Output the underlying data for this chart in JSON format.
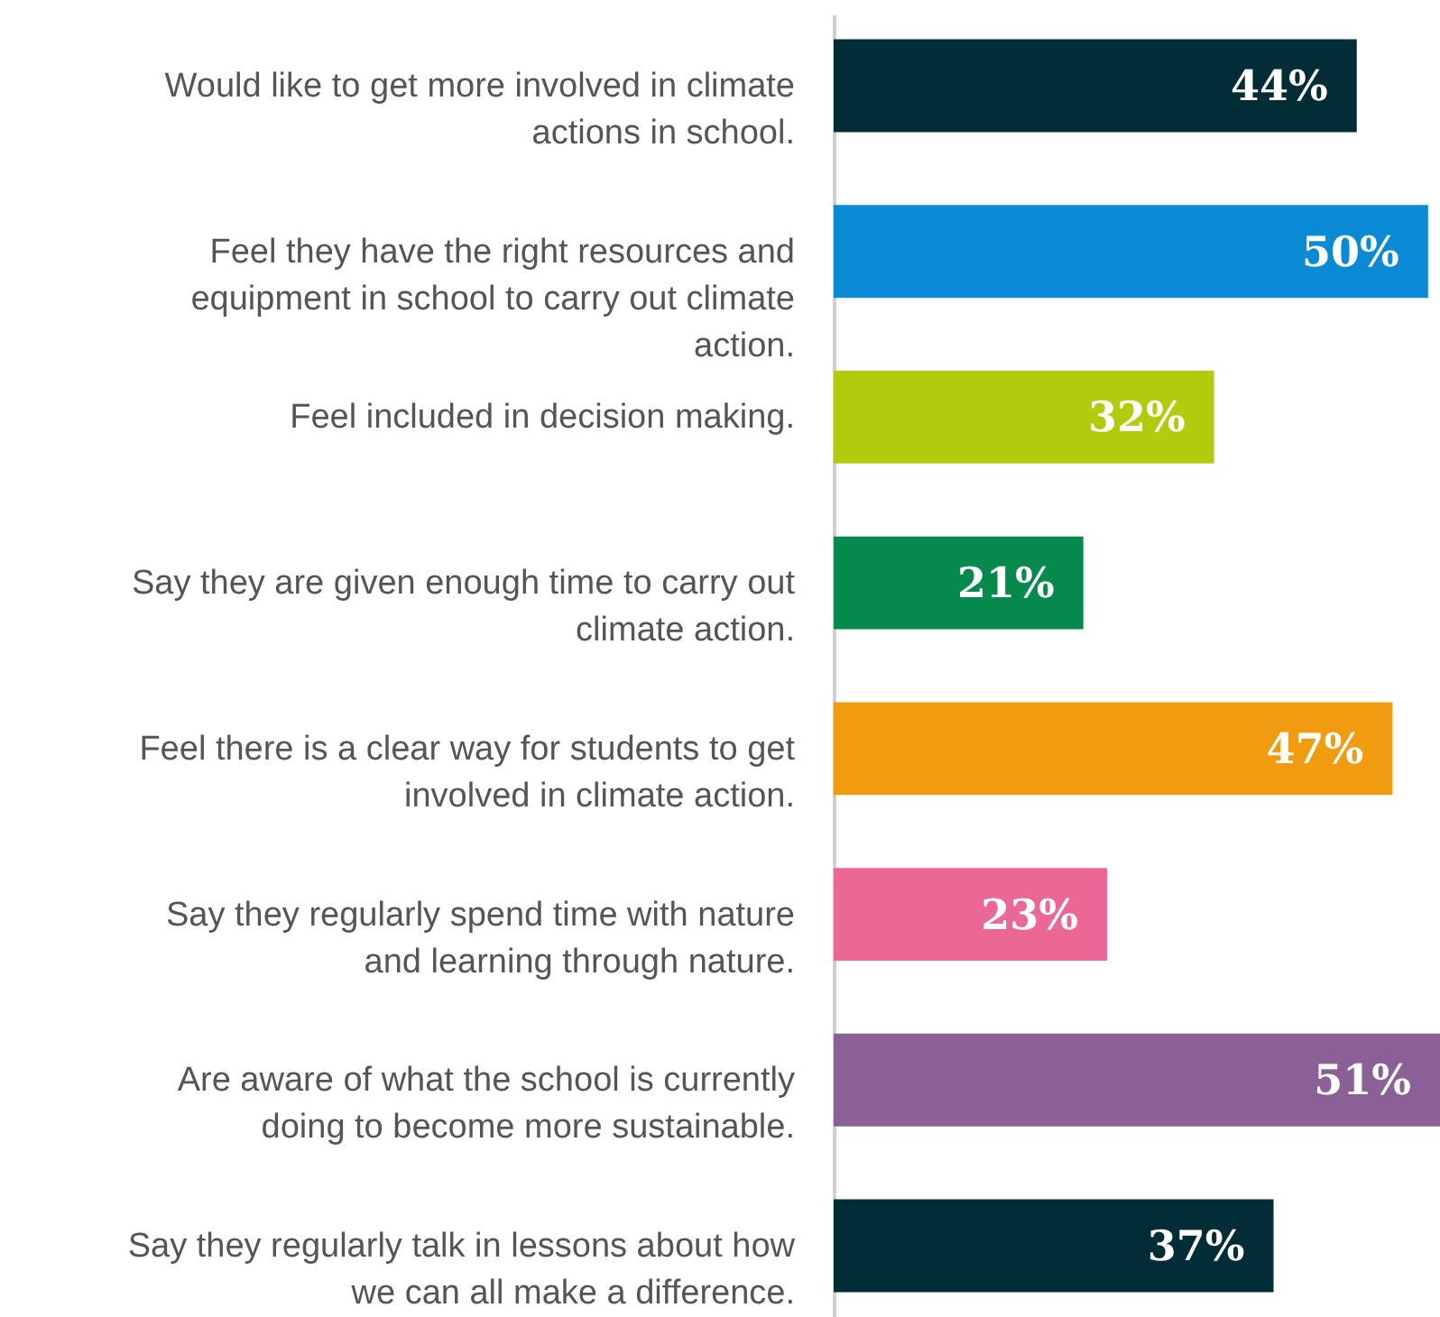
{
  "chart_data": {
    "type": "bar",
    "orientation": "horizontal",
    "categories": [
      "Would like to get more involved in climate\nactions in school.",
      "Feel they have the right resources and\nequipment in school to carry out climate\naction.",
      "Feel included in decision making.",
      "Say they are given enough time to carry out\nclimate action.",
      "Feel there is a clear way for students to get\ninvolved in climate action.",
      "Say they regularly spend time with nature\nand learning through nature.",
      "Are aware of what the school is currently\ndoing to become more sustainable.",
      "Say they regularly talk in lessons about how\nwe can all make a difference."
    ],
    "values": [
      44,
      50,
      32,
      21,
      47,
      23,
      51,
      37
    ],
    "colors": [
      "#032d36",
      "#0a8ad4",
      "#b0cc0c",
      "#06894c",
      "#f09b10",
      "#eb6896",
      "#8a6096",
      "#032d36"
    ],
    "value_labels": [
      "44%",
      "50%",
      "32%",
      "21%",
      "47%",
      "23%",
      "51%",
      "37%"
    ],
    "tick_labels": "y"
  }
}
